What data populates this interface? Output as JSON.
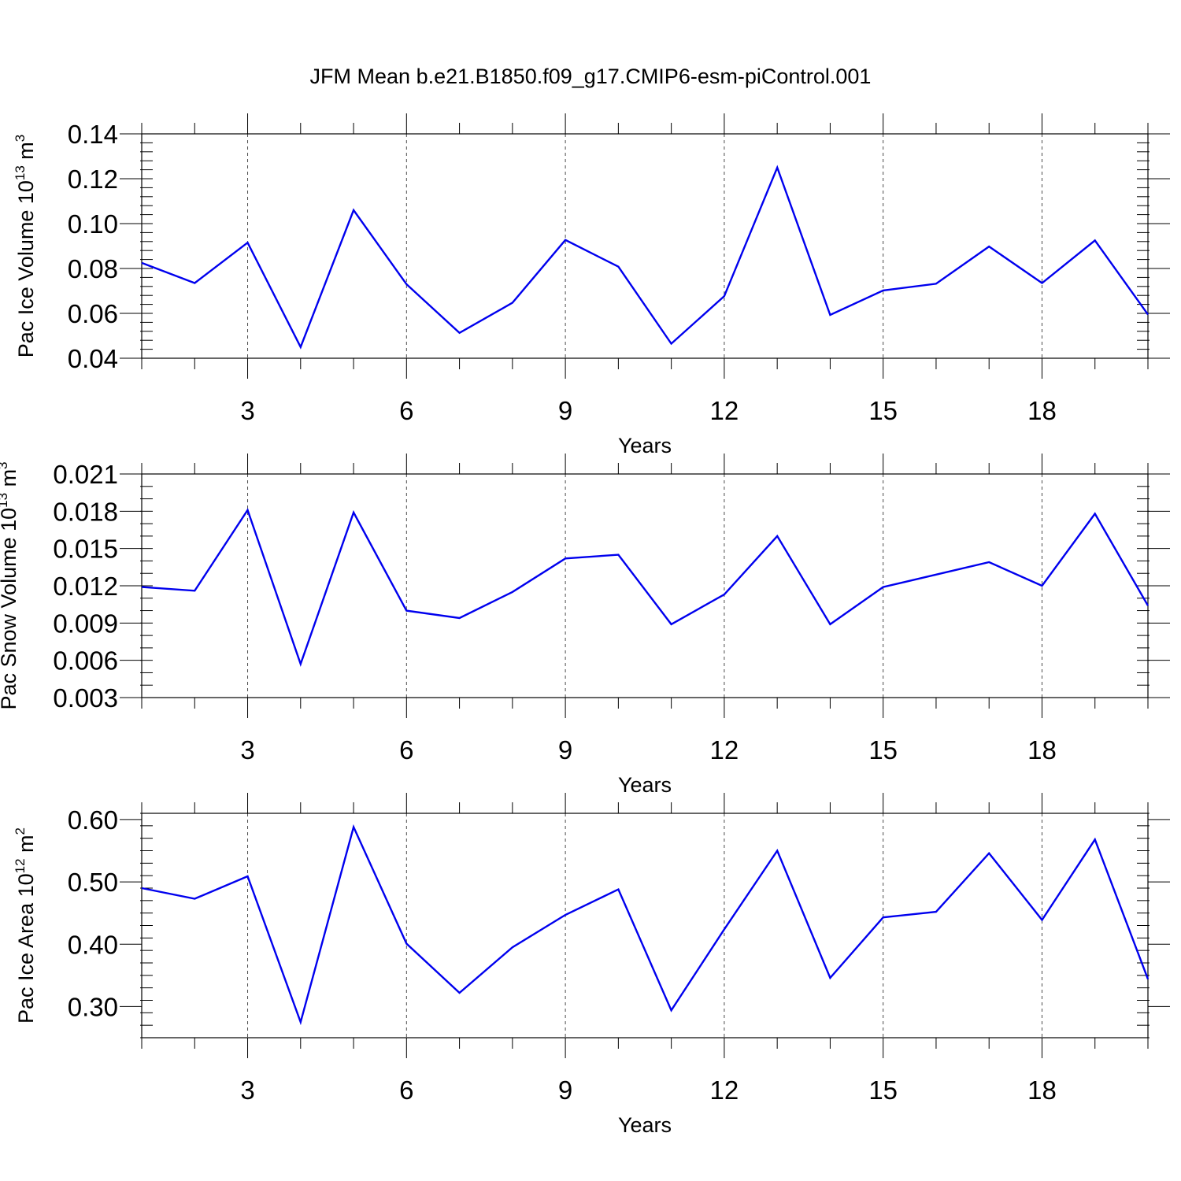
{
  "title": "JFM Mean b.e21.B1850.f09_g17.CMIP6-esm-piControl.001",
  "colors": {
    "line": "#0000ee",
    "axis": "#000000",
    "grid": "#000000"
  },
  "chart_data": [
    {
      "type": "line",
      "ylabel": "Pac Ice Volume 10",
      "ylabel_sup": "13",
      "ylabel_unit": " m",
      "ylabel_unit_sup": "3",
      "xlabel": "Years",
      "xlim": [
        1,
        20
      ],
      "ylim": [
        0.04,
        0.14
      ],
      "xticks": [
        3,
        6,
        9,
        12,
        15,
        18
      ],
      "yticks": [
        0.04,
        0.06,
        0.08,
        0.1,
        0.12,
        0.14
      ],
      "ytick_labels": [
        "0.04",
        "0.06",
        "0.08",
        "0.10",
        "0.12",
        "0.14"
      ],
      "yminor_step": 0.004,
      "grid": "vertical dashed at major x ticks",
      "x": [
        1,
        2,
        3,
        4,
        5,
        6,
        7,
        8,
        9,
        10,
        11,
        12,
        13,
        14,
        15,
        16,
        17,
        18,
        19,
        20
      ],
      "y": [
        0.0825,
        0.0735,
        0.0915,
        0.045,
        0.106,
        0.073,
        0.0513,
        0.0647,
        0.0927,
        0.0808,
        0.0465,
        0.0677,
        0.125,
        0.0593,
        0.0702,
        0.0732,
        0.0898,
        0.0735,
        0.0925,
        0.0595
      ]
    },
    {
      "type": "line",
      "ylabel": "Pac Snow Volume 10",
      "ylabel_sup": "13",
      "ylabel_unit": " m",
      "ylabel_unit_sup": "3",
      "xlabel": "Years",
      "xlim": [
        1,
        20
      ],
      "ylim": [
        0.003,
        0.021
      ],
      "xticks": [
        3,
        6,
        9,
        12,
        15,
        18
      ],
      "yticks": [
        0.003,
        0.006,
        0.009,
        0.012,
        0.015,
        0.018,
        0.021
      ],
      "ytick_labels": [
        "0.003",
        "0.006",
        "0.009",
        "0.012",
        "0.015",
        "0.018",
        "0.021"
      ],
      "yminor_step": 0.001,
      "grid": "vertical dashed at major x ticks",
      "x": [
        1,
        2,
        3,
        4,
        5,
        6,
        7,
        8,
        9,
        10,
        11,
        12,
        13,
        14,
        15,
        16,
        17,
        18,
        19,
        20
      ],
      "y": [
        0.0119,
        0.0116,
        0.0181,
        0.0057,
        0.0179,
        0.01,
        0.0094,
        0.0115,
        0.0142,
        0.0145,
        0.0089,
        0.0113,
        0.016,
        0.0089,
        0.0119,
        0.0129,
        0.0139,
        0.012,
        0.0178,
        0.0104
      ]
    },
    {
      "type": "line",
      "ylabel": "Pac Ice Area 10",
      "ylabel_sup": "12",
      "ylabel_unit": " m",
      "ylabel_unit_sup": "2",
      "xlabel": "Years",
      "xlim": [
        1,
        20
      ],
      "ylim": [
        0.25,
        0.61
      ],
      "xticks": [
        3,
        6,
        9,
        12,
        15,
        18
      ],
      "yticks": [
        0.3,
        0.4,
        0.5,
        0.6
      ],
      "ytick_labels": [
        "0.30",
        "0.40",
        "0.50",
        "0.60"
      ],
      "yminor_step": 0.02,
      "grid": "vertical dashed at major x ticks",
      "x": [
        1,
        2,
        3,
        4,
        5,
        6,
        7,
        8,
        9,
        10,
        11,
        12,
        13,
        14,
        15,
        16,
        17,
        18,
        19,
        20
      ],
      "y": [
        0.49,
        0.473,
        0.509,
        0.275,
        0.588,
        0.401,
        0.322,
        0.395,
        0.447,
        0.488,
        0.294,
        0.424,
        0.55,
        0.346,
        0.443,
        0.452,
        0.546,
        0.439,
        0.568,
        0.344
      ]
    }
  ]
}
